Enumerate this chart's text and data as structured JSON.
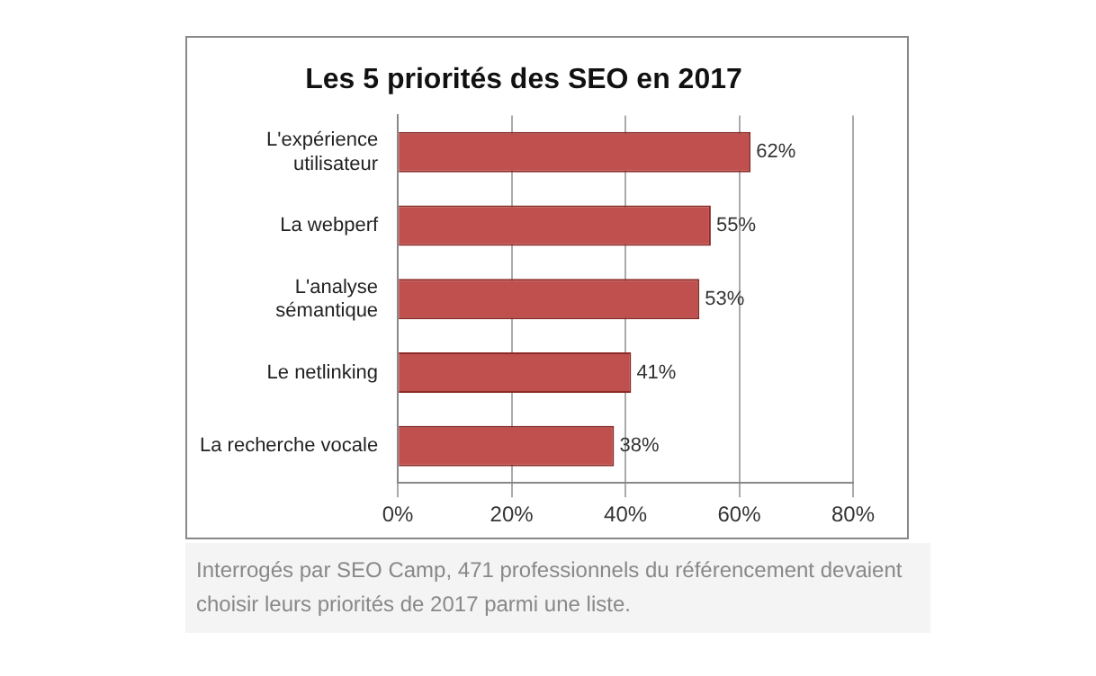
{
  "chart_data": {
    "type": "bar",
    "orientation": "horizontal",
    "title": "Les 5 priorités des SEO en 2017",
    "categories": [
      "L'expérience utilisateur",
      "La webperf",
      "L'analyse sémantique",
      "Le netlinking",
      "La recherche vocale"
    ],
    "values": [
      62,
      55,
      53,
      41,
      38
    ],
    "color": "#c0504d",
    "value_labels": [
      "62%",
      "55%",
      "53%",
      "41%",
      "38%"
    ],
    "xlim": [
      0,
      80
    ],
    "xticks": [
      {
        "value": 0,
        "label": "0%"
      },
      {
        "value": 20,
        "label": "20%"
      },
      {
        "value": 40,
        "label": "40%"
      },
      {
        "value": 60,
        "label": "60%"
      },
      {
        "value": 80,
        "label": "80%"
      }
    ],
    "grid": "x",
    "legend": false,
    "annotations": [
      "Interrogés par SEO Camp, 471 professionnels du référencement devaient choisir leurs priorités de 2017 parmi une liste."
    ]
  }
}
